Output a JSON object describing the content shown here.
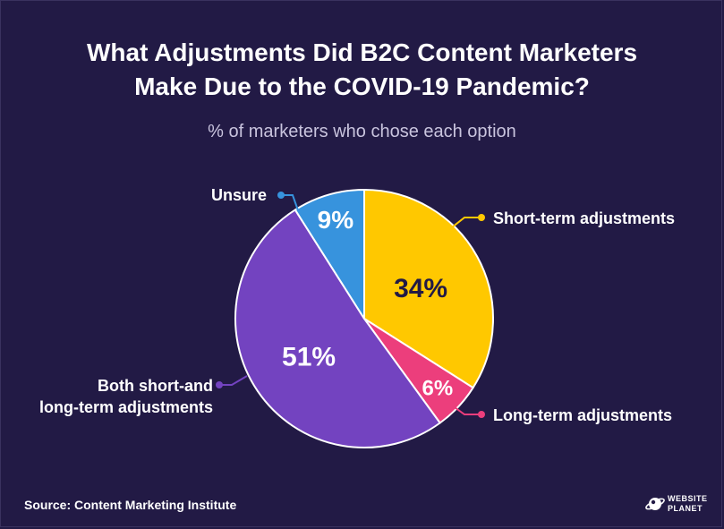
{
  "title_lines": [
    "What Adjustments Did B2C Content Marketers",
    "Make Due to the COVID-19 Pandemic?"
  ],
  "subtitle": "% of marketers who chose each option",
  "source": "Source: Content Marketing Institute",
  "logo": {
    "line1": "WEBSITE",
    "line2": "PLANET"
  },
  "chart_data": {
    "type": "pie",
    "title": "What Adjustments Did B2C Content Marketers Make Due to the COVID-19 Pandemic?",
    "subtitle": "% of marketers who chose each option",
    "slices": [
      {
        "label": "Short-term adjustments",
        "value": 34,
        "display": "34%",
        "color": "#ffc800",
        "label_color": "#221a45"
      },
      {
        "label": "Long-term adjustments",
        "value": 6,
        "display": "6%",
        "color": "#ec3e7c",
        "label_color": "#ffffff"
      },
      {
        "label_lines": [
          "Both short-and",
          "long-term adjustments"
        ],
        "label": "Both short-and long-term adjustments",
        "value": 51,
        "display": "51%",
        "color": "#7343c0",
        "label_color": "#ffffff"
      },
      {
        "label": "Unsure",
        "value": 9,
        "display": "9%",
        "color": "#3793dd",
        "label_color": "#ffffff"
      }
    ],
    "start_angle_deg": 0,
    "direction": "clockwise",
    "legend": "callouts"
  }
}
